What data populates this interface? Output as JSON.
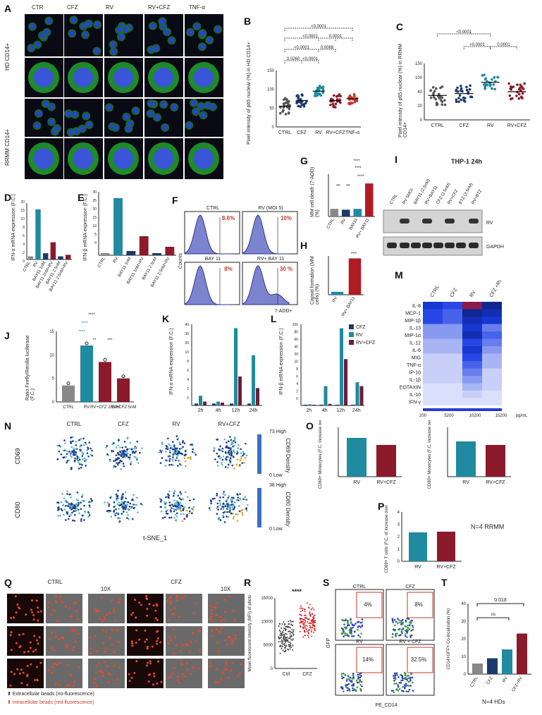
{
  "panels": {
    "A": {
      "label": "A",
      "columns": [
        "CTR",
        "CFZ",
        "RV",
        "RV+CFZ",
        "TNF-α"
      ],
      "rows": [
        "HD CD14+",
        "RRMM CD14+"
      ]
    },
    "B": {
      "label": "B",
      "ylabel": "Pixel intensity of p65 nuclear (%) in HD CD14+",
      "categories": [
        "CTRL",
        "CFZ",
        "RV",
        "RV+CFZ",
        "TNF-α"
      ],
      "pvalues": [
        "<0.0001",
        "<0.0001",
        "0.0001",
        "<0.0001",
        "0.0260",
        "<0.0001",
        "0.0068"
      ],
      "yticks": [
        "150",
        "100",
        "50",
        "0"
      ]
    },
    "C": {
      "label": "C",
      "ylabel": "Pixel intensity of p65 nuclear (%) in RRMM CD14+",
      "categories": [
        "CTRL",
        "CFZ",
        "RV",
        "RV+CFZ"
      ],
      "pvalues": [
        "<0.0001",
        "<0.0001",
        "0.0001"
      ],
      "yticks": [
        "150",
        "100",
        "40",
        "20",
        "0"
      ]
    },
    "D": {
      "label": "D",
      "ylabel": "IFN-α mRNA expression (F.C.)",
      "categories": [
        "CTRL",
        "RV",
        "BAY11 1nM",
        "BAY11 1nM+RV",
        "BAY11 2.5nM",
        "BAY11 2.5nM+RV"
      ],
      "yticks": [
        "20",
        "15",
        "10",
        "8",
        "6",
        "4",
        "2",
        "0"
      ]
    },
    "E": {
      "label": "E",
      "ylabel": "IFN-β mRNA expression (F.C.)",
      "categories": [
        "CTRL",
        "RV",
        "BAY11 1nM",
        "BAY11 1nM+RV",
        "BAY11 2.5nM",
        "BAY11 2.5nM+RV"
      ],
      "yticks": [
        "30",
        "25",
        "20",
        "15",
        "10",
        "5",
        "0"
      ]
    },
    "F": {
      "label": "F",
      "titles": [
        "CTRL",
        "RV (MOI 5)",
        "BAY 11",
        "RV+ BAY 11"
      ],
      "percents": [
        "8.6%",
        "10%",
        "8%",
        "30 %"
      ],
      "ylabel": "Counts",
      "xlabel": "7-ADD+"
    },
    "G": {
      "label": "G",
      "ylabel": "MM cell death (7-ADD) (%)",
      "categories": [
        "CTRL",
        "RV",
        "BAY11",
        "RV+ BAY11"
      ],
      "stars": [
        "****",
        "****",
        "****",
        "ns",
        "ns"
      ]
    },
    "H": {
      "label": "H",
      "ylabel": "Capsid formation (MM cells) (%)",
      "categories": [
        "RV",
        "RV+ BAY11"
      ],
      "stars": [
        "***"
      ]
    },
    "I": {
      "label": "I",
      "title": "THP-1 24h",
      "lanes": [
        "CTRL",
        "RV 5MOI",
        "BAY11 (2.5nM)",
        "RV+BAY11",
        "CFZ (2.5nM)",
        "RV+CFZ",
        "BTZ (2.5nM)",
        "RV+BTZ"
      ],
      "bands": [
        "RV",
        "GAPDH"
      ]
    },
    "J": {
      "label": "J",
      "ylabel": "Ratio Firefly/Renilla luciferase (F.C.)",
      "categories": [
        "CTRL",
        "RV",
        "RV+CFZ 2.5nM",
        "RV+CFZ 5nM"
      ],
      "stars": [
        "****",
        "****",
        "****",
        "**",
        "***"
      ],
      "yticks": [
        "15",
        "10",
        "5",
        "0"
      ]
    },
    "K": {
      "label": "K",
      "ylabel": "IFN-α mRNA expression (F.C.)",
      "categories": [
        "2h",
        "4h",
        "12h",
        "24h"
      ],
      "yticks": [
        "40",
        "30",
        "20",
        "10",
        "8",
        "6",
        "4",
        "2",
        "0"
      ]
    },
    "L": {
      "label": "L",
      "ylabel": "IFN-β mRNA expression (F.C.)",
      "categories": [
        "2h",
        "4h",
        "12h",
        "24h"
      ],
      "legend": [
        "CFZ",
        "RV",
        "RV+CFZ"
      ],
      "yticks": [
        "100",
        "80",
        "60",
        "40",
        "20",
        "10",
        "8",
        "6",
        "4",
        "2",
        "0"
      ]
    },
    "M": {
      "label": "M",
      "columns": [
        "CTRL",
        "CFZ",
        "RV",
        "CFZ +RV"
      ],
      "rows": [
        "IL-8",
        "MCP-1",
        "MIP-1β",
        "IL-13",
        "MIP-1α",
        "IL-12",
        "IL-6",
        "MIG",
        "TNF-α",
        "IP-10",
        "IL-1β",
        "EOTAXIN",
        "IL-10",
        "IFN-γ"
      ],
      "scale": [
        "200",
        "5200",
        "10200",
        "15200"
      ],
      "scale_unit": "pg/mL"
    },
    "N": {
      "label": "N",
      "columns": [
        "CTRL",
        "CFZ",
        "RV",
        "RV+CFZ"
      ],
      "rows": [
        "CD69",
        "CD80"
      ],
      "density": [
        "CD69 Density",
        "CD80 Density"
      ],
      "high": [
        "73 High",
        "38 High"
      ],
      "low": [
        "0 Low",
        "0 Low"
      ],
      "xlabel": "t-SNE_1"
    },
    "O": {
      "label": "O",
      "ylabel1": "CD69+ Monocytes (F.C. increase over Ctrl)",
      "ylabel2": "CD80+ Monocytes (F.C. increase over Ctrl)",
      "categories": [
        "RV",
        "RV+CFZ"
      ]
    },
    "P": {
      "label": "P",
      "ylabel": "CD69+ T cells (F.C. of increase over Ctrl)",
      "categories": [
        "RV",
        "RV+CFZ"
      ],
      "note": "N=4 RRMM",
      "yticks": [
        "4",
        "3",
        "2",
        "1",
        "0"
      ]
    },
    "Q": {
      "label": "Q",
      "groups": [
        "CTRL",
        "CFZ"
      ],
      "zoom": [
        "10X",
        "10X"
      ],
      "legend": [
        "Extracellular beads (no-fluorescence)",
        "Intracellular beads (red fluorescence)"
      ]
    },
    "R": {
      "label": "R",
      "ylabel": "Mean fluorescent intensity (MFI) of photo",
      "categories": [
        "Ctrl",
        "CFZ"
      ],
      "stars": "****",
      "yticks": [
        "15000",
        "10000",
        "5000",
        "0"
      ]
    },
    "S": {
      "label": "S",
      "titles": [
        "CTRL",
        "CFZ",
        "RV",
        "RV + CFZ"
      ],
      "percents": [
        "4%",
        "8%",
        "14%",
        "32.5%"
      ],
      "ylabel": "GFP",
      "xlabel": "PE_CD14"
    },
    "T": {
      "label": "T",
      "ylabel": "CD14+GFP+ Co-localization (%)",
      "categories": [
        "CTRL",
        "CFZ",
        "RV",
        "CFZ+RV"
      ],
      "pvalues": [
        "0.018",
        "ns"
      ],
      "note": "N=4 HDs",
      "yticks": [
        "40",
        "30",
        "20",
        "10",
        "0"
      ]
    }
  },
  "colors": {
    "teal": "#1f8aa0",
    "darkred": "#8b1a2b",
    "navy": "#1b3a6b",
    "gray": "#888888",
    "red": "#c0392b"
  }
}
